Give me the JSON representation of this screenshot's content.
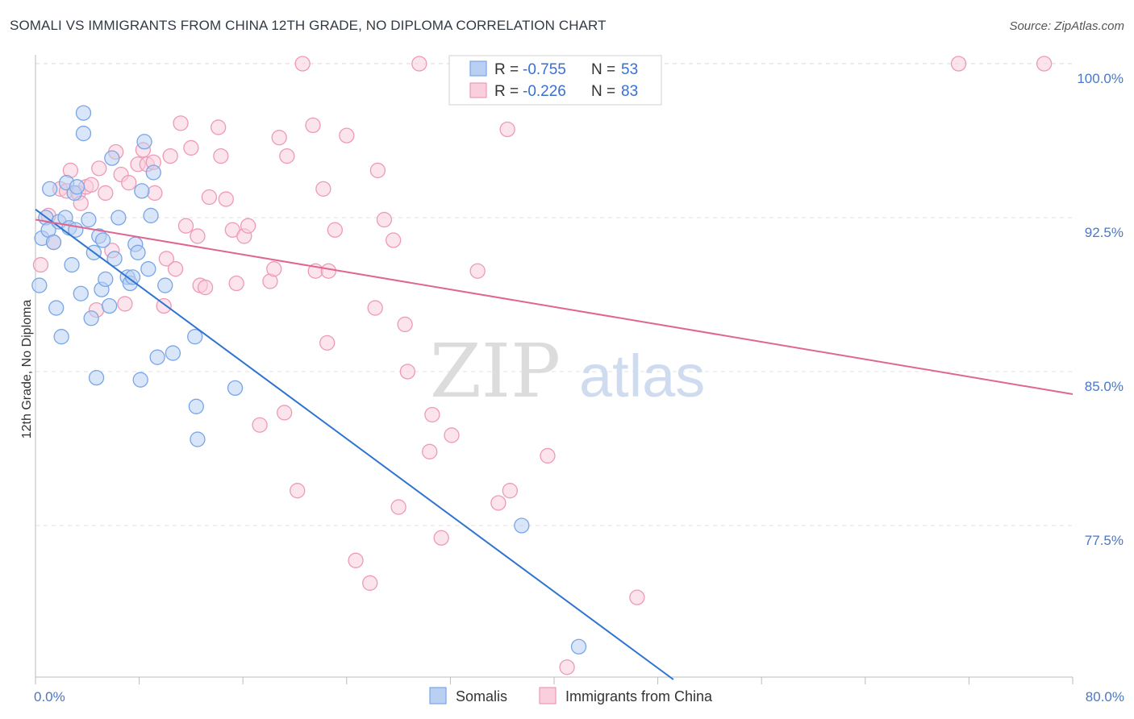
{
  "title": "SOMALI VS IMMIGRANTS FROM CHINA 12TH GRADE, NO DIPLOMA CORRELATION CHART",
  "source": "Source: ZipAtlas.com",
  "chart_data": {
    "type": "scatter",
    "ylabel": "12th Grade, No Diploma",
    "xlim": [
      0,
      80
    ],
    "ylim": [
      70,
      100.5
    ],
    "x_tick_labels": [
      {
        "value": 0,
        "label": "0.0%"
      },
      {
        "value": 80,
        "label": "80.0%"
      }
    ],
    "y_tick_labels": [
      {
        "value": 100,
        "label": "100.0%"
      },
      {
        "value": 92.5,
        "label": "92.5%"
      },
      {
        "value": 85,
        "label": "85.0%"
      },
      {
        "value": 77.5,
        "label": "77.5%"
      }
    ],
    "grid": true,
    "legend_placement": "top-center",
    "watermark": {
      "part1": "ZIP",
      "part2": "atlas"
    },
    "series": [
      {
        "name": "Somalis",
        "color": "#7aa6e6",
        "fill": "#b9d0f3",
        "line_color": "#2f74d0",
        "r_label": "R = ",
        "r_value": "-0.755",
        "n_label": "N = ",
        "n_value": "53",
        "trend": {
          "x0": 0,
          "y0": 92.9,
          "x1": 49.2,
          "y1": 70.0
        },
        "points": [
          [
            0.3,
            89.2
          ],
          [
            0.5,
            91.5
          ],
          [
            0.8,
            92.5
          ],
          [
            1.0,
            91.9
          ],
          [
            1.1,
            93.9
          ],
          [
            1.4,
            91.3
          ],
          [
            1.6,
            88.1
          ],
          [
            1.8,
            92.3
          ],
          [
            2.0,
            86.7
          ],
          [
            2.3,
            92.5
          ],
          [
            2.4,
            94.2
          ],
          [
            2.6,
            92.0
          ],
          [
            2.8,
            90.2
          ],
          [
            3.0,
            93.7
          ],
          [
            3.1,
            91.9
          ],
          [
            3.2,
            94.0
          ],
          [
            3.5,
            88.8
          ],
          [
            3.7,
            96.6
          ],
          [
            3.7,
            97.6
          ],
          [
            4.1,
            92.4
          ],
          [
            4.3,
            87.6
          ],
          [
            4.5,
            90.8
          ],
          [
            4.7,
            84.7
          ],
          [
            4.9,
            91.6
          ],
          [
            5.1,
            89.0
          ],
          [
            5.2,
            91.4
          ],
          [
            5.4,
            89.5
          ],
          [
            5.7,
            88.2
          ],
          [
            5.9,
            95.4
          ],
          [
            6.1,
            90.5
          ],
          [
            6.4,
            92.5
          ],
          [
            7.1,
            89.6
          ],
          [
            7.3,
            89.3
          ],
          [
            7.5,
            89.6
          ],
          [
            7.7,
            91.2
          ],
          [
            7.9,
            90.8
          ],
          [
            8.1,
            84.6
          ],
          [
            8.2,
            93.8
          ],
          [
            8.4,
            96.2
          ],
          [
            8.7,
            90.0
          ],
          [
            8.9,
            92.6
          ],
          [
            9.1,
            94.7
          ],
          [
            9.4,
            85.7
          ],
          [
            10.0,
            89.2
          ],
          [
            10.6,
            85.9
          ],
          [
            12.3,
            86.7
          ],
          [
            12.4,
            83.3
          ],
          [
            12.5,
            81.7
          ],
          [
            15.4,
            84.2
          ],
          [
            37.5,
            77.5
          ],
          [
            41.9,
            71.6
          ]
        ]
      },
      {
        "name": "Immigrants from China",
        "color": "#ee9ab5",
        "fill": "#f9cedd",
        "line_color": "#e0668f",
        "r_label": "R = ",
        "r_value": "-0.226",
        "n_label": "N = ",
        "n_value": "83",
        "trend": {
          "x0": 0,
          "y0": 92.4,
          "x1": 80,
          "y1": 83.9
        },
        "points": [
          [
            0.4,
            90.2
          ],
          [
            1.0,
            92.6
          ],
          [
            1.4,
            91.3
          ],
          [
            1.9,
            93.9
          ],
          [
            2.4,
            93.8
          ],
          [
            2.7,
            94.8
          ],
          [
            3.3,
            93.7
          ],
          [
            3.5,
            93.2
          ],
          [
            3.9,
            94.0
          ],
          [
            4.3,
            94.1
          ],
          [
            4.7,
            88.0
          ],
          [
            4.9,
            94.9
          ],
          [
            5.4,
            93.7
          ],
          [
            5.9,
            90.9
          ],
          [
            6.2,
            95.7
          ],
          [
            6.6,
            94.6
          ],
          [
            6.9,
            88.3
          ],
          [
            7.2,
            94.2
          ],
          [
            7.9,
            95.1
          ],
          [
            8.3,
            95.8
          ],
          [
            8.6,
            95.1
          ],
          [
            9.1,
            95.2
          ],
          [
            9.2,
            93.7
          ],
          [
            9.9,
            88.2
          ],
          [
            10.1,
            90.5
          ],
          [
            10.4,
            95.5
          ],
          [
            10.8,
            90.0
          ],
          [
            11.2,
            97.1
          ],
          [
            11.6,
            92.1
          ],
          [
            12.0,
            95.9
          ],
          [
            12.5,
            91.6
          ],
          [
            12.7,
            89.2
          ],
          [
            13.1,
            89.1
          ],
          [
            13.4,
            93.5
          ],
          [
            14.1,
            96.9
          ],
          [
            14.3,
            95.5
          ],
          [
            14.7,
            93.4
          ],
          [
            15.2,
            91.9
          ],
          [
            15.5,
            89.3
          ],
          [
            16.1,
            91.6
          ],
          [
            16.4,
            92.1
          ],
          [
            17.3,
            82.4
          ],
          [
            18.1,
            89.4
          ],
          [
            18.4,
            90.0
          ],
          [
            18.8,
            96.4
          ],
          [
            19.2,
            83.0
          ],
          [
            19.4,
            95.5
          ],
          [
            20.2,
            79.2
          ],
          [
            20.6,
            100.0
          ],
          [
            21.4,
            97.0
          ],
          [
            21.6,
            89.9
          ],
          [
            22.2,
            93.9
          ],
          [
            22.5,
            86.4
          ],
          [
            22.6,
            89.9
          ],
          [
            23.1,
            91.9
          ],
          [
            24.0,
            96.5
          ],
          [
            24.7,
            75.8
          ],
          [
            25.8,
            74.7
          ],
          [
            26.2,
            88.1
          ],
          [
            26.4,
            94.8
          ],
          [
            26.9,
            92.4
          ],
          [
            27.6,
            91.4
          ],
          [
            28.0,
            78.4
          ],
          [
            28.5,
            87.3
          ],
          [
            28.7,
            85.0
          ],
          [
            29.6,
            100.0
          ],
          [
            30.4,
            81.1
          ],
          [
            30.6,
            82.9
          ],
          [
            31.3,
            76.9
          ],
          [
            32.1,
            81.9
          ],
          [
            34.1,
            89.9
          ],
          [
            35.7,
            78.6
          ],
          [
            36.4,
            96.8
          ],
          [
            36.6,
            79.2
          ],
          [
            39.5,
            80.9
          ],
          [
            41.0,
            70.6
          ],
          [
            46.4,
            74.0
          ],
          [
            71.2,
            100.0
          ],
          [
            77.8,
            100.0
          ],
          [
            33.8,
            100.0
          ]
        ]
      }
    ]
  }
}
